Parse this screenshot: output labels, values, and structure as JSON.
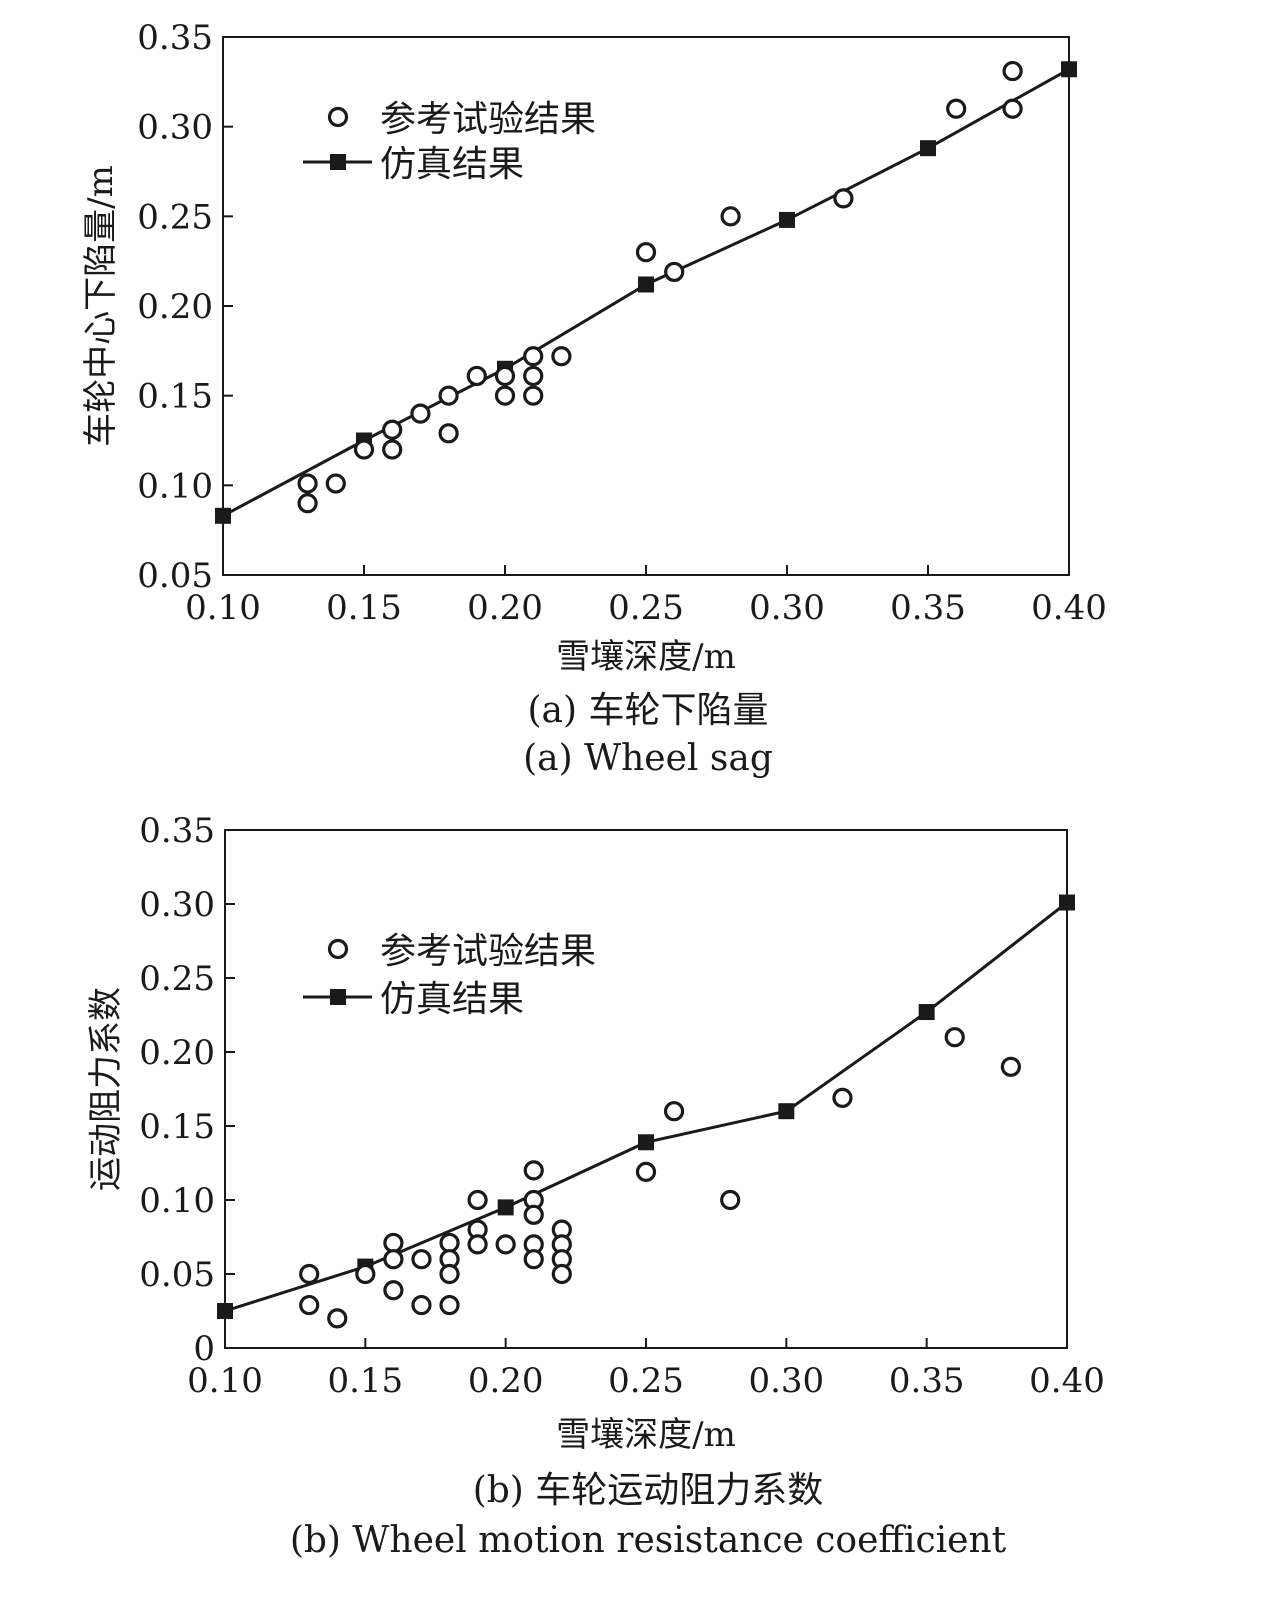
{
  "chart_data": [
    {
      "type": "scatter",
      "caption_cn": "(a) 车轮下陷量",
      "caption_en": "(a) Wheel sag",
      "xlabel": "雪壤深度/m",
      "ylabel": "车轮中心下陷量/m",
      "xlim": [
        0.1,
        0.4
      ],
      "ylim": [
        0.05,
        0.35
      ],
      "xticks": [
        "0.10",
        "0.15",
        "0.20",
        "0.25",
        "0.30",
        "0.35",
        "0.40"
      ],
      "yticks": [
        "0.05",
        "0.10",
        "0.15",
        "0.20",
        "0.25",
        "0.30",
        "0.35"
      ],
      "legend_position": "top-left",
      "series": [
        {
          "name": "参考试验结果",
          "marker": "open-circle",
          "x": [
            0.13,
            0.13,
            0.14,
            0.15,
            0.16,
            0.16,
            0.17,
            0.18,
            0.18,
            0.19,
            0.2,
            0.2,
            0.21,
            0.21,
            0.21,
            0.22,
            0.25,
            0.26,
            0.28,
            0.32,
            0.36,
            0.38,
            0.38
          ],
          "y": [
            0.101,
            0.09,
            0.101,
            0.12,
            0.131,
            0.12,
            0.14,
            0.15,
            0.129,
            0.161,
            0.161,
            0.15,
            0.172,
            0.161,
            0.15,
            0.172,
            0.23,
            0.219,
            0.25,
            0.26,
            0.31,
            0.331,
            0.31
          ]
        },
        {
          "name": "仿真结果",
          "marker": "filled-square-line",
          "x": [
            0.1,
            0.15,
            0.2,
            0.25,
            0.3,
            0.35,
            0.4
          ],
          "y": [
            0.083,
            0.125,
            0.165,
            0.212,
            0.248,
            0.288,
            0.332
          ]
        }
      ]
    },
    {
      "type": "scatter",
      "caption_cn": "(b) 车轮运动阻力系数",
      "caption_en": "(b) Wheel motion resistance coefficient",
      "xlabel": "雪壤深度/m",
      "ylabel": "运动阻力系数",
      "xlim": [
        0.1,
        0.4
      ],
      "ylim": [
        0,
        0.35
      ],
      "xticks": [
        "0.10",
        "0.15",
        "0.20",
        "0.25",
        "0.30",
        "0.35",
        "0.40"
      ],
      "yticks": [
        "0",
        "0.05",
        "0.10",
        "0.15",
        "0.20",
        "0.25",
        "0.30",
        "0.35"
      ],
      "legend_position": "top-left",
      "series": [
        {
          "name": "参考试验结果",
          "marker": "open-circle",
          "x": [
            0.13,
            0.13,
            0.14,
            0.15,
            0.16,
            0.16,
            0.16,
            0.17,
            0.17,
            0.18,
            0.18,
            0.18,
            0.18,
            0.19,
            0.19,
            0.19,
            0.2,
            0.21,
            0.21,
            0.21,
            0.21,
            0.21,
            0.22,
            0.22,
            0.22,
            0.22,
            0.25,
            0.26,
            0.28,
            0.32,
            0.36,
            0.38
          ],
          "y": [
            0.05,
            0.029,
            0.02,
            0.05,
            0.071,
            0.06,
            0.039,
            0.06,
            0.029,
            0.071,
            0.06,
            0.05,
            0.029,
            0.1,
            0.08,
            0.07,
            0.07,
            0.12,
            0.1,
            0.09,
            0.07,
            0.06,
            0.08,
            0.07,
            0.06,
            0.05,
            0.119,
            0.16,
            0.1,
            0.169,
            0.21,
            0.19
          ]
        },
        {
          "name": "仿真结果",
          "marker": "filled-square-line",
          "x": [
            0.1,
            0.15,
            0.2,
            0.25,
            0.3,
            0.35,
            0.4
          ],
          "y": [
            0.025,
            0.055,
            0.095,
            0.139,
            0.16,
            0.227,
            0.301
          ]
        }
      ]
    }
  ]
}
